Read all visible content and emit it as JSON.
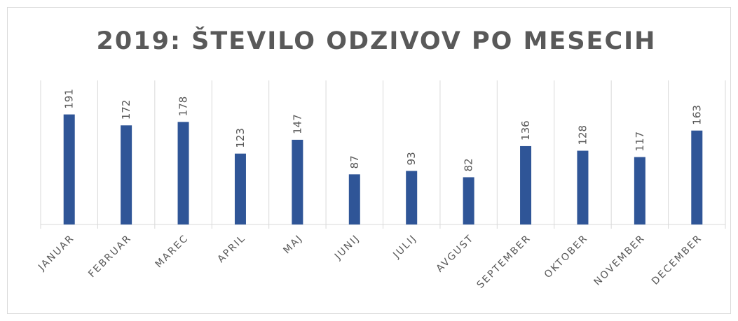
{
  "chart_data": {
    "type": "bar",
    "title": "2019: ŠTEVILO ODZIVOV PO MESECIH",
    "categories": [
      "JANUAR",
      "FEBRUAR",
      "MAREC",
      "APRIL",
      "MAJ",
      "JUNIJ",
      "JULIJ",
      "AVGUST",
      "SEPTEMBER",
      "OKTOBER",
      "NOVEMBER",
      "DECEMBER"
    ],
    "values": [
      191,
      172,
      178,
      123,
      147,
      87,
      93,
      82,
      136,
      128,
      117,
      163
    ],
    "color": "#2f5597",
    "ylim": [
      0,
      250
    ]
  }
}
